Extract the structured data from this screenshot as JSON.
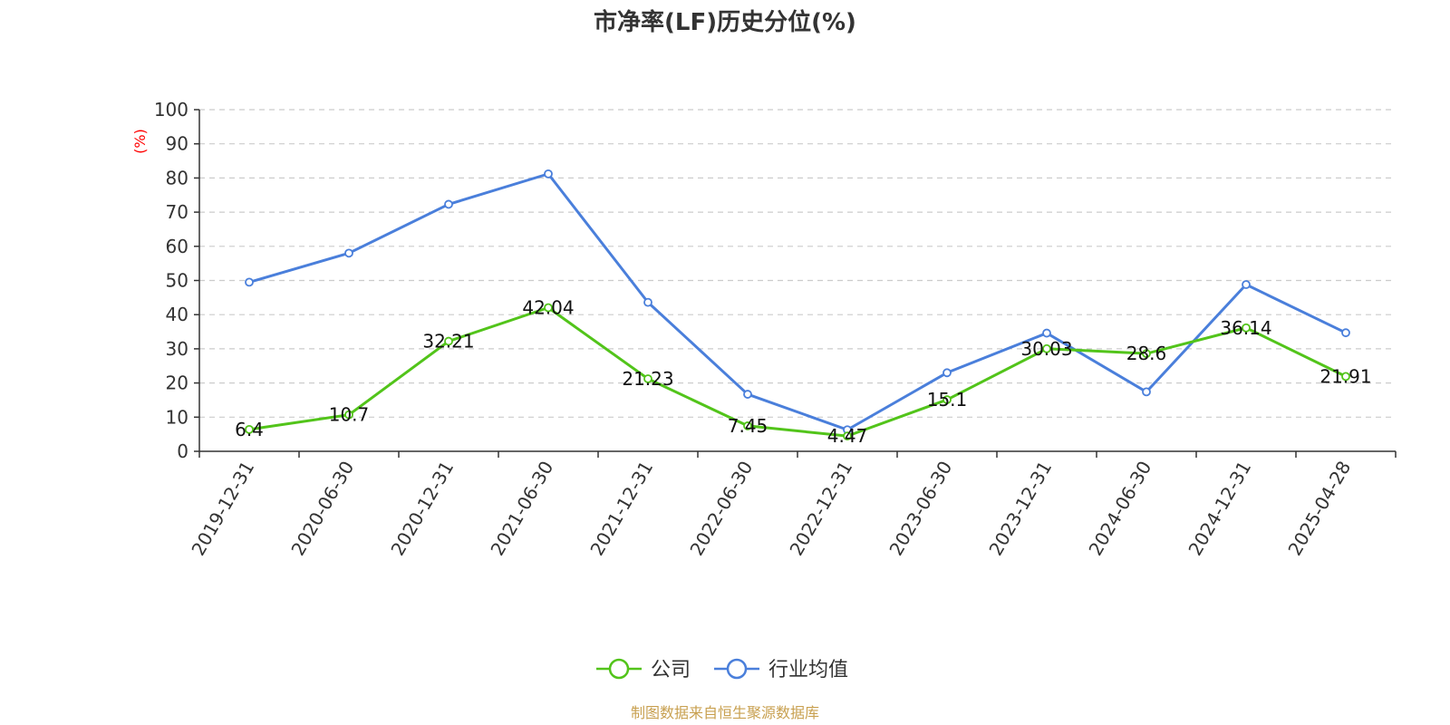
{
  "colors": {
    "company": "#52c41a",
    "industry": "#4a7fdb",
    "unit": "#ff0000",
    "source": "#c8a050",
    "grid": "#cccccc",
    "axis": "#333333"
  },
  "chart_data": {
    "type": "line",
    "title": "市净率(LF)历史分位(%)",
    "ylabel": "(%)",
    "xlabel": "",
    "ylim": [
      0,
      100
    ],
    "yticks": [
      0,
      10,
      20,
      30,
      40,
      50,
      60,
      70,
      80,
      90,
      100
    ],
    "grid": true,
    "legend_position": "bottom-center",
    "categories": [
      "2019-12-31",
      "2020-06-30",
      "2020-12-31",
      "2021-06-30",
      "2021-12-31",
      "2022-06-30",
      "2022-12-31",
      "2023-06-30",
      "2023-12-31",
      "2024-06-30",
      "2024-12-31",
      "2025-04-28"
    ],
    "series": [
      {
        "name": "公司",
        "values": [
          6.4,
          10.7,
          32.21,
          42.04,
          21.23,
          7.45,
          4.47,
          15.1,
          30.03,
          28.6,
          36.14,
          21.91
        ],
        "labels": [
          "6.4",
          "10.7",
          "32.21",
          "42.04",
          "21.23",
          "7.45",
          "4.47",
          "15.1",
          "30.03",
          "28.6",
          "36.14",
          "21.91"
        ]
      },
      {
        "name": "行业均值",
        "values": [
          49.5,
          58.0,
          72.3,
          81.2,
          43.6,
          16.7,
          6.3,
          23.0,
          34.6,
          17.4,
          48.8,
          34.7
        ]
      }
    ]
  },
  "source_note": "制图数据来自恒生聚源数据库"
}
